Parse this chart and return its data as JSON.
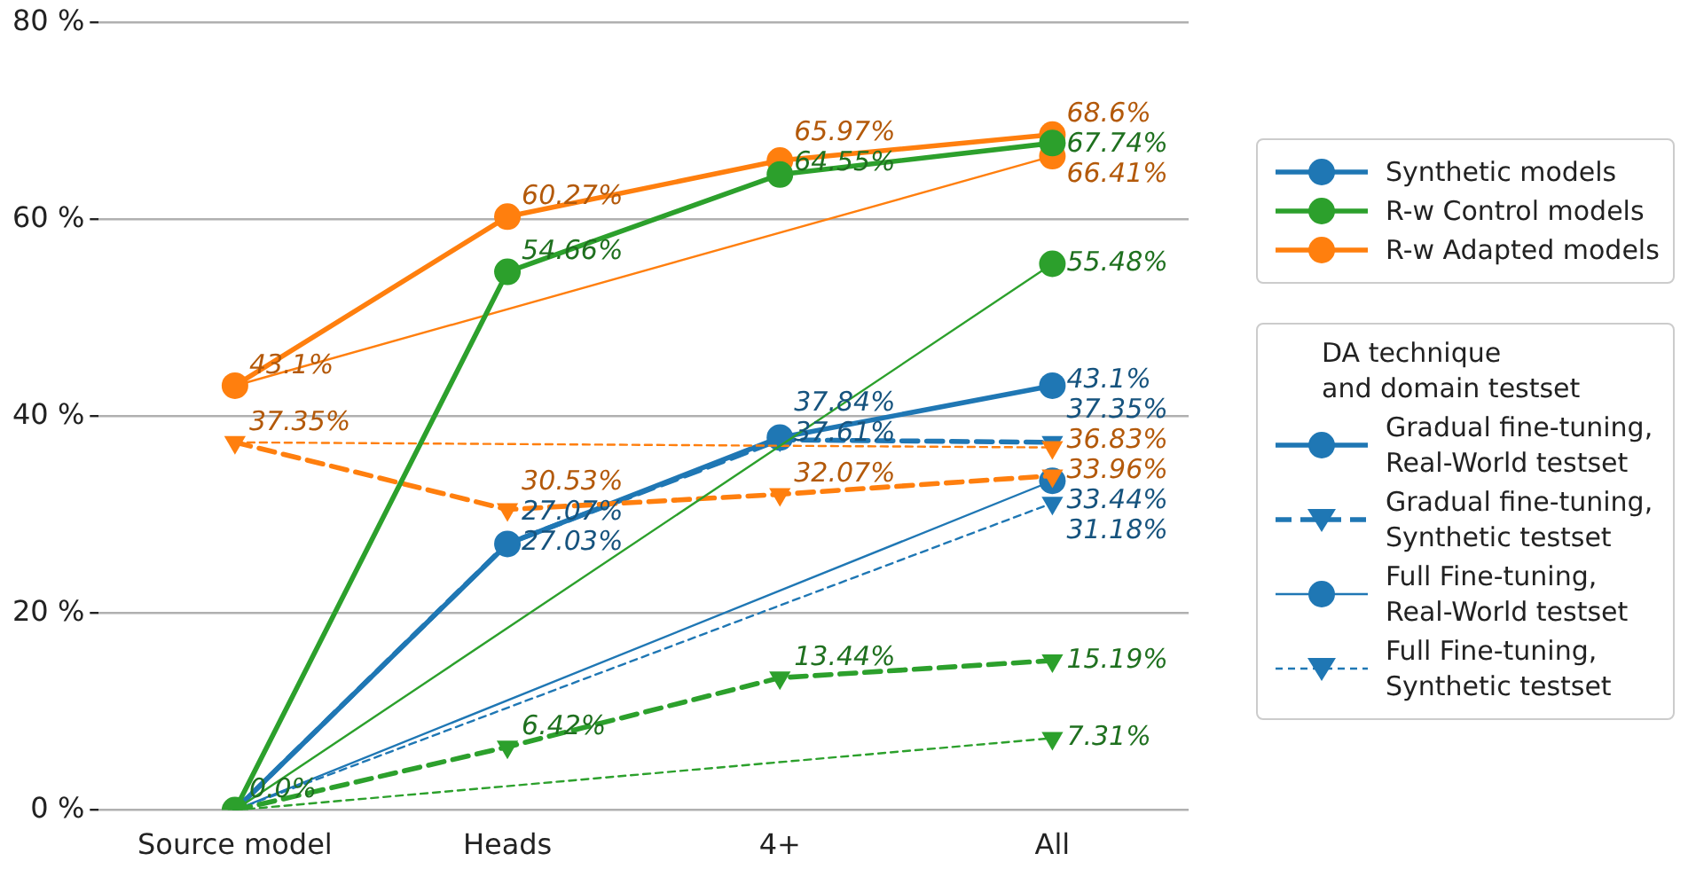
{
  "chart_data": {
    "type": "line",
    "categories": [
      "Source model",
      "Heads",
      "4+",
      "All"
    ],
    "ylim": [
      0,
      80
    ],
    "yticks": [
      {
        "value": 0,
        "label": "0 %"
      },
      {
        "value": 20,
        "label": "20 %"
      },
      {
        "value": 40,
        "label": "40 %"
      },
      {
        "value": 60,
        "label": "60 %"
      },
      {
        "value": 80,
        "label": "80 %"
      }
    ],
    "grid": "y",
    "legend": "right",
    "legend_title": "DA technique\nand domain testset",
    "series": [
      {
        "name": "Synthetic models",
        "color": "#1f77b4",
        "line_style": "solid",
        "marker": "circle",
        "values": [
          null,
          null,
          null,
          null
        ]
      },
      {
        "name": "R-w Control models",
        "color": "#2ca02c",
        "line_style": "solid",
        "marker": "circle",
        "values": [
          0,
          54.66,
          64.55,
          67.74
        ],
        "value_labels": [
          "0.0%",
          "54.66%",
          "64.55%",
          "67.74%"
        ]
      },
      {
        "name": "R-w Adapted models",
        "color": "#ff7f0e",
        "line_style": "solid",
        "marker": "circle",
        "values": [
          43.1,
          60.27,
          65.97,
          68.6
        ],
        "value_labels": [
          "43.1%",
          "60.27%",
          "65.97%",
          "68.6%"
        ]
      },
      {
        "color": "#2ca02c",
        "line_style": "dashed",
        "marker": "triangle",
        "values": [
          0,
          6.42,
          13.44,
          15.19
        ],
        "value_labels": [
          null,
          "6.42%",
          "13.44%",
          "15.19%"
        ]
      },
      {
        "color": "#2ca02c",
        "line_style": "solid",
        "marker": "circle",
        "values": [
          0,
          null,
          null,
          55.48
        ],
        "value_labels": [
          null,
          null,
          null,
          "55.48%"
        ]
      },
      {
        "color": "#2ca02c",
        "line_style": "dashed",
        "marker": "triangle",
        "values": [
          0,
          null,
          null,
          7.31
        ],
        "value_labels": [
          null,
          null,
          null,
          "7.31%"
        ]
      },
      {
        "color": "#ff7f0e",
        "line_style": "dashed",
        "marker": "triangle",
        "values": [
          37.35,
          30.53,
          32.07,
          33.96
        ],
        "value_labels": [
          "37.35%",
          "30.53%",
          "32.07%",
          "33.96%"
        ]
      },
      {
        "color": "#ff7f0e",
        "line_style": "solid",
        "marker": "circle",
        "values": [
          43.1,
          null,
          null,
          66.41
        ],
        "value_labels": [
          null,
          null,
          null,
          "66.41%"
        ]
      },
      {
        "color": "#ff7f0e",
        "line_style": "dashed",
        "marker": "triangle",
        "values": [
          37.35,
          null,
          null,
          36.83
        ],
        "value_labels": [
          null,
          null,
          null,
          "36.83%"
        ]
      },
      {
        "name": "Gradual fine-tuning,\nReal-World testset",
        "color": "#1f77b4",
        "line_style": "solid",
        "marker": "circle",
        "values": [
          0,
          27.03,
          37.84,
          43.1
        ],
        "value_labels": [
          null,
          "27.03%",
          "37.84%",
          "43.1%"
        ]
      },
      {
        "name": "Gradual fine-tuning,\nSynthetic testset",
        "color": "#1f77b4",
        "line_style": "dashed",
        "marker": "triangle",
        "values": [
          0,
          27.07,
          37.61,
          37.35
        ],
        "value_labels": [
          null,
          "27.07%",
          "37.61%",
          "37.35%"
        ]
      },
      {
        "name": "Full Fine-tuning,\nReal-World testset",
        "color": "#1f77b4",
        "line_style": "solid",
        "marker": "circle",
        "values": [
          0,
          null,
          null,
          33.44
        ],
        "value_labels": [
          null,
          null,
          null,
          "33.44%"
        ]
      },
      {
        "name": "Full Fine-tuning,\nSynthetic testset",
        "color": "#1f77b4",
        "line_style": "dashed",
        "marker": "triangle",
        "values": [
          0,
          null,
          null,
          31.18
        ],
        "value_labels": [
          null,
          null,
          null,
          "31.18%"
        ]
      }
    ]
  }
}
